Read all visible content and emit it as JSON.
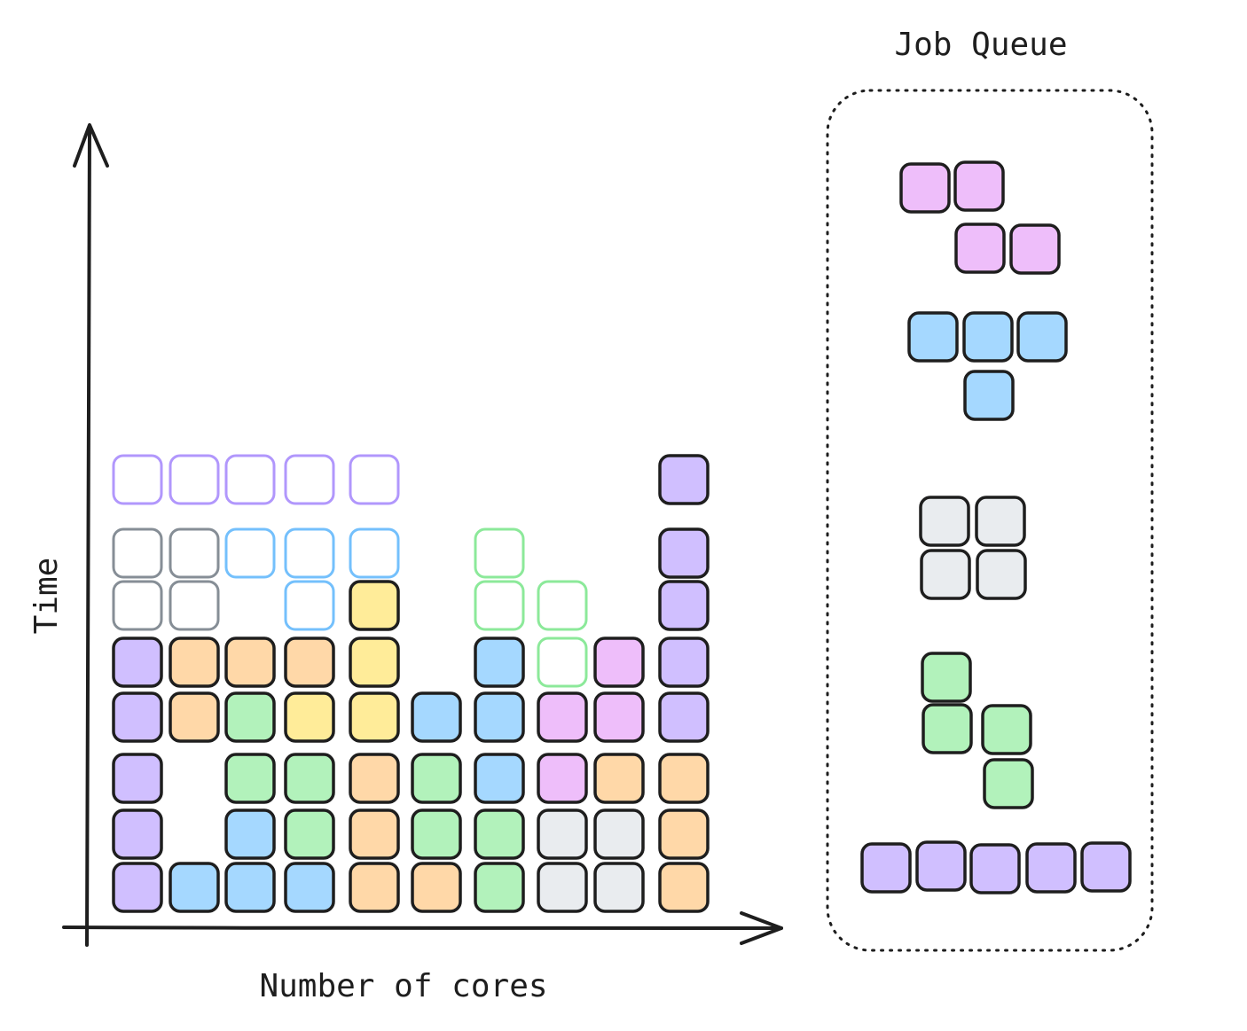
{
  "palette": {
    "purple": "#d0bfff",
    "orange": "#ffd8a8",
    "green": "#b2f2bb",
    "yellow": "#ffec99",
    "blue": "#a5d8ff",
    "pink": "#eebefa",
    "gray": "#e9ecef",
    "outline_purple": "#b197fc",
    "outline_blue": "#74c0fc",
    "outline_gray": "#868e96",
    "outline_green": "#8ce99a",
    "stroke": "#1e1e1e"
  },
  "labels": {
    "y_axis": "Time",
    "x_axis": "Number of cores",
    "queue_title": "Job Queue"
  },
  "scheduled_jobs": [
    {
      "color": "purple",
      "cells": [
        [
          0,
          0
        ],
        [
          0,
          1
        ],
        [
          0,
          2
        ],
        [
          0,
          3
        ],
        [
          0,
          4
        ]
      ]
    },
    {
      "color": "blue",
      "cells": [
        [
          1,
          0
        ],
        [
          2,
          0
        ],
        [
          3,
          0
        ],
        [
          2,
          1
        ]
      ]
    },
    {
      "color": "orange",
      "cells": [
        [
          1,
          4
        ],
        [
          1,
          3
        ],
        [
          2,
          4
        ],
        [
          3,
          4
        ]
      ]
    },
    {
      "color": "green",
      "cells": [
        [
          2,
          3
        ],
        [
          2,
          2
        ],
        [
          3,
          2
        ],
        [
          3,
          1
        ]
      ]
    },
    {
      "color": "yellow",
      "cells": [
        [
          3,
          3
        ],
        [
          4,
          3
        ],
        [
          4,
          4
        ],
        [
          4,
          5
        ]
      ]
    },
    {
      "color": "orange",
      "cells": [
        [
          4,
          0
        ],
        [
          5,
          0
        ],
        [
          4,
          1
        ],
        [
          4,
          2
        ]
      ]
    },
    {
      "color": "green",
      "cells": [
        [
          5,
          2
        ],
        [
          5,
          1
        ],
        [
          6,
          1
        ],
        [
          6,
          0
        ]
      ]
    },
    {
      "color": "blue",
      "cells": [
        [
          5,
          3
        ],
        [
          6,
          3
        ],
        [
          6,
          2
        ],
        [
          6,
          4
        ]
      ]
    },
    {
      "color": "gray",
      "cells": [
        [
          7,
          0
        ],
        [
          8,
          0
        ],
        [
          7,
          1
        ],
        [
          8,
          1
        ]
      ]
    },
    {
      "color": "pink",
      "cells": [
        [
          7,
          2
        ],
        [
          7,
          3
        ],
        [
          8,
          3
        ],
        [
          8,
          4
        ]
      ]
    },
    {
      "color": "orange",
      "cells": [
        [
          8,
          2
        ],
        [
          9,
          2
        ],
        [
          9,
          1
        ],
        [
          9,
          0
        ]
      ]
    },
    {
      "color": "purple",
      "cells": [
        [
          9,
          3
        ],
        [
          9,
          4
        ],
        [
          9,
          5
        ],
        [
          9,
          6
        ],
        [
          9,
          7
        ]
      ]
    }
  ],
  "planned_jobs": [
    {
      "color": "outline_gray",
      "cells": [
        [
          0,
          5
        ],
        [
          1,
          5
        ],
        [
          0,
          6
        ],
        [
          1,
          6
        ]
      ]
    },
    {
      "color": "outline_purple",
      "cells": [
        [
          0,
          7
        ],
        [
          1,
          7
        ],
        [
          2,
          7
        ],
        [
          3,
          7
        ],
        [
          4,
          7
        ]
      ]
    },
    {
      "color": "outline_blue",
      "cells": [
        [
          2,
          6
        ],
        [
          3,
          6
        ],
        [
          4,
          6
        ],
        [
          3,
          5
        ]
      ]
    },
    {
      "color": "outline_green",
      "cells": [
        [
          7,
          4
        ],
        [
          7,
          5
        ],
        [
          6,
          5
        ],
        [
          6,
          6
        ]
      ]
    }
  ],
  "queue_jobs": [
    {
      "color": "pink",
      "shape": "Z"
    },
    {
      "color": "blue",
      "shape": "T"
    },
    {
      "color": "gray",
      "shape": "O"
    },
    {
      "color": "green",
      "shape": "S"
    },
    {
      "color": "purple",
      "shape": "I"
    }
  ]
}
